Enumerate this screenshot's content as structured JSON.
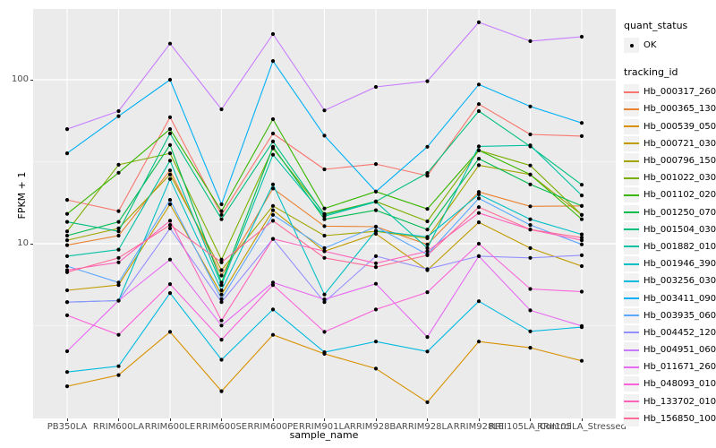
{
  "figure": {
    "background": "#FFFFFF",
    "panel_bg": "#EBEBEB",
    "grid_color": "#FFFFFF",
    "tick_label_color": "#4D4D4D",
    "point_color": "#000000",
    "legend_key_bg": "#F2F2F2"
  },
  "axes": {
    "x_title": "sample_name",
    "y_title": "FPKM + 1",
    "y_tick_labels": [
      "100",
      "10"
    ],
    "y_tick_values": [
      100,
      10
    ],
    "y_minor_values": [
      31.62,
      3.162
    ]
  },
  "legend": {
    "quant_status_title": "quant_status",
    "quant_status_ok_label": "OK",
    "tracking_title": "tracking_id"
  },
  "chart_data": {
    "type": "line",
    "x_axis": "sample_name",
    "y_axis": "FPKM + 1",
    "y_scale": "log10",
    "ylim": [
      0.86,
      270
    ],
    "grid": true,
    "legend_position": "right",
    "point_shape": "black dot (quant_status = OK)",
    "categories": [
      "PB350LA",
      "RRIM600LA",
      "RRIM600LE",
      "RRIM600SE",
      "RRIM600PE",
      "RRIM901LA",
      "RRIM928BA",
      "RRIM928LA",
      "RRIM928LE",
      "RRII105LA_Control",
      "RRII105LA_Stressed"
    ],
    "series": [
      {
        "name": "Hb_000317_260",
        "color": "#F8766D",
        "values": [
          18.5,
          15.8,
          59,
          15,
          47,
          28.4,
          30.6,
          26,
          71,
          46.4,
          45.3
        ]
      },
      {
        "name": "Hb_000365_130",
        "color": "#EA8331",
        "values": [
          9.8,
          11.2,
          28,
          6.4,
          21.7,
          12.8,
          12.7,
          9.9,
          20.7,
          16.9,
          17
        ]
      },
      {
        "name": "Hb_000539_050",
        "color": "#D89000",
        "values": [
          1.35,
          1.58,
          2.9,
          1.26,
          2.78,
          2.13,
          1.73,
          1.08,
          2.53,
          2.32,
          1.93
        ]
      },
      {
        "name": "Hb_000721_030",
        "color": "#C09B00",
        "values": [
          5.2,
          5.6,
          17.4,
          4.9,
          16,
          9,
          11.5,
          6.9,
          13.5,
          9.4,
          7.3
        ]
      },
      {
        "name": "Hb_000796_150",
        "color": "#A3A500",
        "values": [
          10.5,
          12.4,
          26.4,
          6.9,
          17,
          11.2,
          11.9,
          10.8,
          30.1,
          26.4,
          15
        ]
      },
      {
        "name": "Hb_001022_030",
        "color": "#7CAE00",
        "values": [
          11.9,
          30.3,
          35.6,
          8,
          38.2,
          15.2,
          18.1,
          13.7,
          37.1,
          30,
          15
        ]
      },
      {
        "name": "Hb_001102_020",
        "color": "#39B600",
        "values": [
          15.2,
          27.1,
          50,
          15.8,
          57.5,
          16.4,
          20.8,
          16.3,
          37.1,
          26.4,
          14.1
        ]
      },
      {
        "name": "Hb_001250_070",
        "color": "#00BB4E",
        "values": [
          11.2,
          13.6,
          40,
          5.8,
          39,
          14.1,
          16,
          12.2,
          33,
          23,
          17
        ]
      },
      {
        "name": "Hb_001504_030",
        "color": "#00BF7D",
        "values": [
          13.6,
          11.9,
          47,
          14.1,
          42,
          15,
          18.1,
          27,
          64.4,
          39.2,
          22.9
        ]
      },
      {
        "name": "Hb_001882_010",
        "color": "#00C1A3",
        "values": [
          8.4,
          9.2,
          32.1,
          5.6,
          34.9,
          14.7,
          18,
          9.4,
          39.2,
          39.8,
          19.7
        ]
      },
      {
        "name": "Hb_001946_390",
        "color": "#00BFC4",
        "values": [
          4.4,
          4.5,
          24.8,
          5.2,
          23,
          4.9,
          12,
          11,
          20,
          14.1,
          11.4
        ]
      },
      {
        "name": "Hb_003256_030",
        "color": "#00BAE0",
        "values": [
          1.65,
          1.79,
          5,
          1.96,
          3.97,
          2.18,
          2.53,
          2.2,
          4.46,
          2.92,
          3.1
        ]
      },
      {
        "name": "Hb_003411_090",
        "color": "#00B0F6",
        "values": [
          35.6,
          60,
          100,
          17.4,
          130,
          45.6,
          20.8,
          39,
          93.6,
          68.7,
          54.5
        ]
      },
      {
        "name": "Hb_003935_060",
        "color": "#5EA8FF",
        "values": [
          7.3,
          5.8,
          18.5,
          4.6,
          15,
          9.4,
          12.7,
          8.6,
          18.9,
          13,
          9.9
        ]
      },
      {
        "name": "Hb_004452_120",
        "color": "#9590FF",
        "values": [
          4.4,
          4.5,
          12.4,
          4.4,
          10.7,
          4.4,
          8.4,
          7,
          8.4,
          8.2,
          8.5
        ]
      },
      {
        "name": "Hb_004951_060",
        "color": "#C77CFF",
        "values": [
          50,
          64.4,
          166,
          66,
          190,
          65,
          90.4,
          98,
          224,
          172,
          183
        ]
      },
      {
        "name": "Hb_011671_260",
        "color": "#E76BF3",
        "values": [
          2.21,
          4.5,
          8,
          3.17,
          5.8,
          4.58,
          5.7,
          2.7,
          8.4,
          3.92,
          3.15
        ]
      },
      {
        "name": "Hb_048093_010",
        "color": "#FA62DB",
        "values": [
          3.66,
          2.78,
          5.67,
          2.6,
          5.6,
          2.9,
          3.97,
          5.06,
          10,
          5.3,
          5.1
        ]
      },
      {
        "name": "Hb_133702_010",
        "color": "#FF62BC",
        "values": [
          6.9,
          7.7,
          13.8,
          3.4,
          10.7,
          9,
          7.6,
          9,
          15.4,
          12.2,
          10.5
        ]
      },
      {
        "name": "Hb_156850_100",
        "color": "#FF6A98",
        "values": [
          6.7,
          8.2,
          13,
          7.7,
          13.8,
          8.2,
          7.2,
          8.5,
          16.7,
          12.2,
          10.9
        ]
      }
    ]
  }
}
